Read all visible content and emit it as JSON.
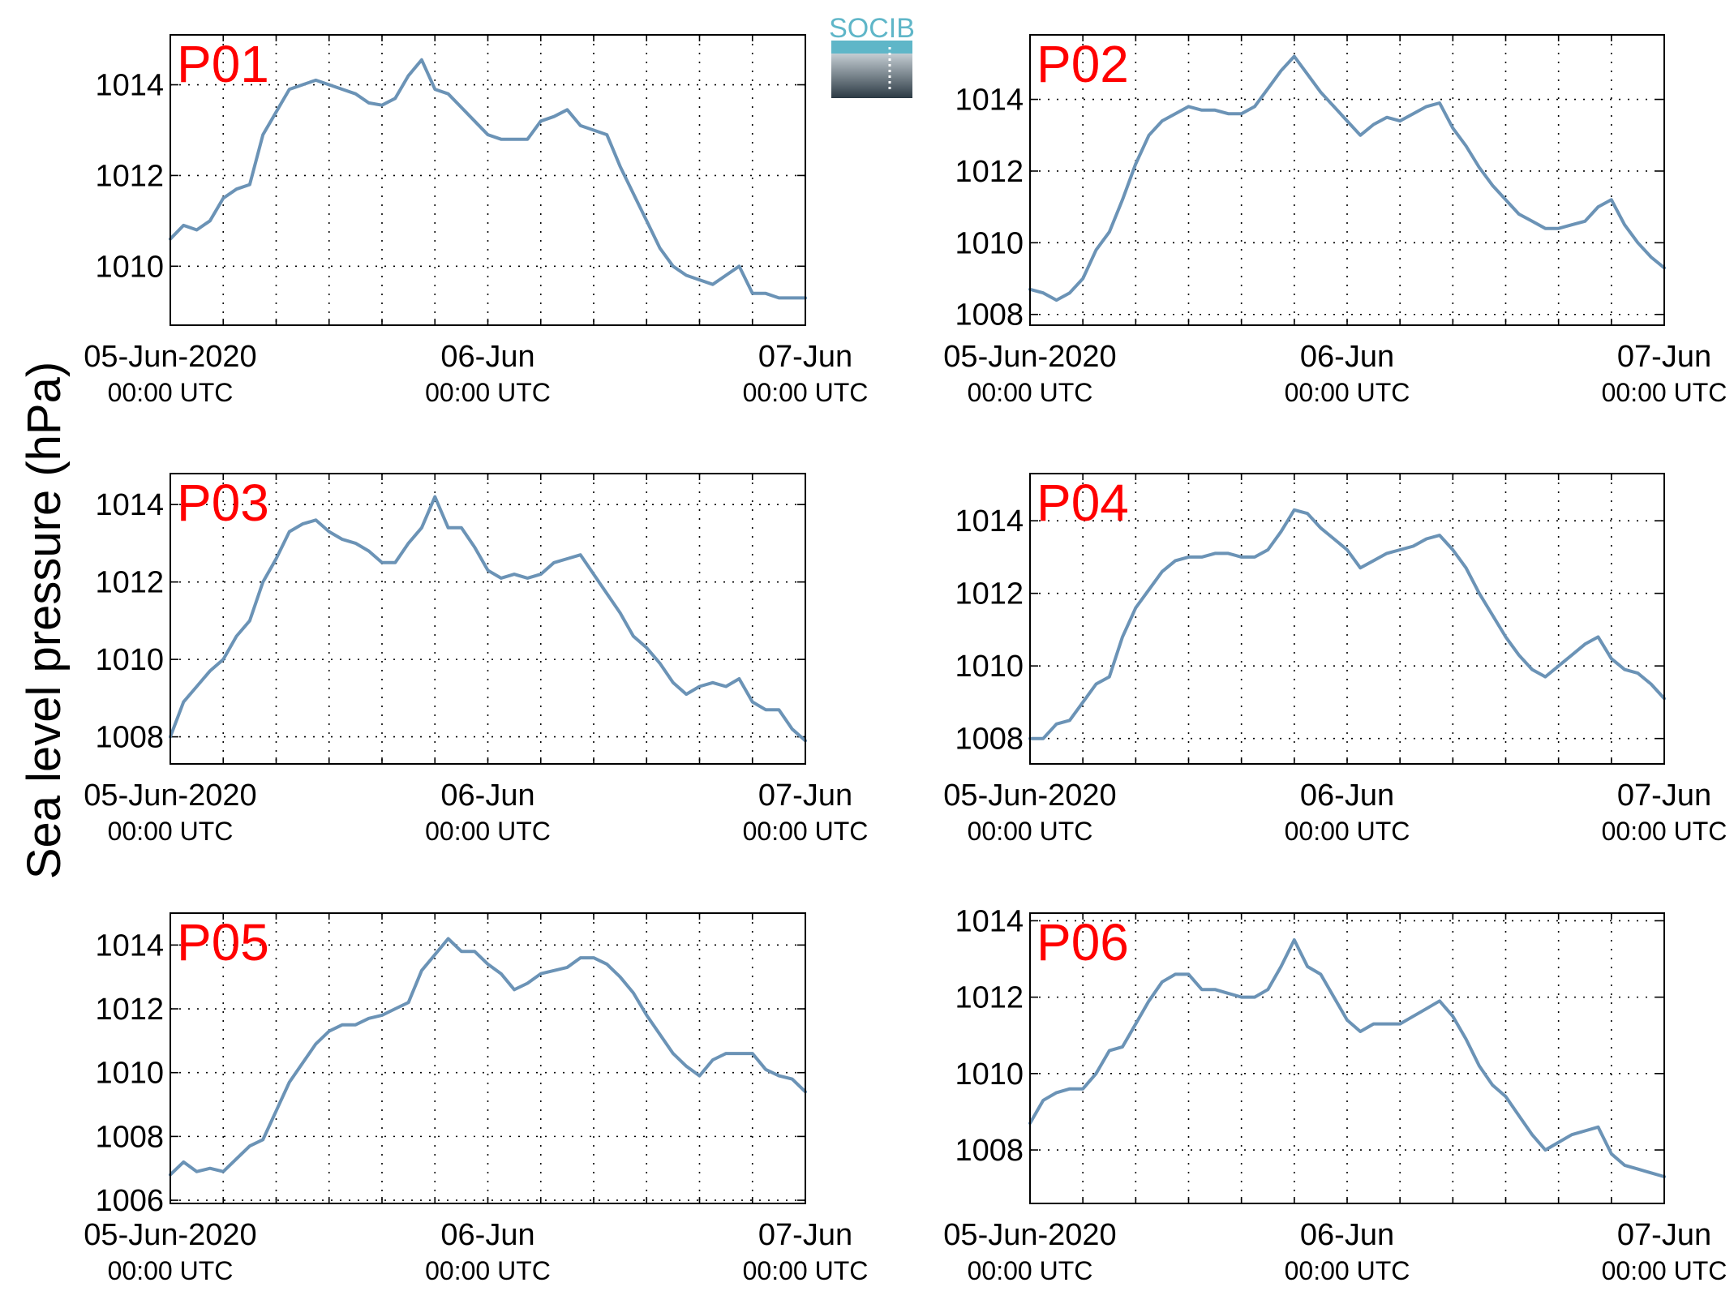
{
  "figure": {
    "ylabel": "Sea level pressure (hPa)",
    "logo_text": "SOCIB"
  },
  "colors": {
    "line": "#6b93b6",
    "panel_label": "#ff0000",
    "logo_accent": "#5fb6c8",
    "logo_dark": "#2c3a44"
  },
  "chart_data": [
    {
      "type": "line",
      "panel_label": "P01",
      "x_unit": "hours since 05-Jun-2020 00:00 UTC",
      "x_ticks": [
        {
          "x": 0,
          "label": "05-Jun-2020",
          "sub": "00:00 UTC"
        },
        {
          "x": 24,
          "label": "06-Jun",
          "sub": "00:00 UTC"
        },
        {
          "x": 48,
          "label": "07-Jun",
          "sub": "00:00 UTC"
        }
      ],
      "xlim": [
        0,
        48
      ],
      "ylim": [
        1008.7,
        1015.1
      ],
      "yticks": [
        1010,
        1012,
        1014
      ],
      "grid": true,
      "x": [
        0,
        1,
        2,
        3,
        4,
        5,
        6,
        7,
        8,
        9,
        10,
        11,
        12,
        13,
        14,
        15,
        16,
        17,
        18,
        19,
        20,
        21,
        22,
        23,
        24,
        25,
        26,
        27,
        28,
        29,
        30,
        31,
        32,
        33,
        34,
        35,
        36,
        37,
        38,
        39,
        40,
        41,
        42,
        43,
        44,
        45,
        46,
        47,
        48
      ],
      "y": [
        1010.6,
        1010.9,
        1010.8,
        1011.0,
        1011.5,
        1011.7,
        1011.8,
        1012.9,
        1013.4,
        1013.9,
        1014.0,
        1014.1,
        1014.0,
        1013.9,
        1013.8,
        1013.6,
        1013.55,
        1013.7,
        1014.2,
        1014.55,
        1013.9,
        1013.8,
        1013.5,
        1013.2,
        1012.9,
        1012.8,
        1012.8,
        1012.8,
        1013.2,
        1013.3,
        1013.45,
        1013.1,
        1013.0,
        1012.9,
        1012.2,
        1011.6,
        1011.0,
        1010.4,
        1010.0,
        1009.8,
        1009.7,
        1009.6,
        1009.8,
        1010.0,
        1009.4,
        1009.4,
        1009.3,
        1009.3,
        1009.3
      ]
    },
    {
      "type": "line",
      "panel_label": "P02",
      "x_unit": "hours since 05-Jun-2020 00:00 UTC",
      "x_ticks": [
        {
          "x": 0,
          "label": "05-Jun-2020",
          "sub": "00:00 UTC"
        },
        {
          "x": 24,
          "label": "06-Jun",
          "sub": "00:00 UTC"
        },
        {
          "x": 48,
          "label": "07-Jun",
          "sub": "00:00 UTC"
        }
      ],
      "xlim": [
        0,
        48
      ],
      "ylim": [
        1007.7,
        1015.8
      ],
      "yticks": [
        1008,
        1010,
        1012,
        1014
      ],
      "grid": true,
      "x": [
        0,
        1,
        2,
        3,
        4,
        5,
        6,
        7,
        8,
        9,
        10,
        11,
        12,
        13,
        14,
        15,
        16,
        17,
        18,
        19,
        20,
        21,
        22,
        23,
        24,
        25,
        26,
        27,
        28,
        29,
        30,
        31,
        32,
        33,
        34,
        35,
        36,
        37,
        38,
        39,
        40,
        41,
        42,
        43,
        44,
        45,
        46,
        47,
        48
      ],
      "y": [
        1008.7,
        1008.6,
        1008.4,
        1008.6,
        1009.0,
        1009.8,
        1010.3,
        1011.2,
        1012.2,
        1013.0,
        1013.4,
        1013.6,
        1013.8,
        1013.7,
        1013.7,
        1013.6,
        1013.6,
        1013.8,
        1014.3,
        1014.8,
        1015.2,
        1014.7,
        1014.2,
        1013.8,
        1013.4,
        1013.0,
        1013.3,
        1013.5,
        1013.4,
        1013.6,
        1013.8,
        1013.9,
        1013.2,
        1012.7,
        1012.1,
        1011.6,
        1011.2,
        1010.8,
        1010.6,
        1010.4,
        1010.4,
        1010.5,
        1010.6,
        1011.0,
        1011.2,
        1010.5,
        1010.0,
        1009.6,
        1009.3
      ]
    },
    {
      "type": "line",
      "panel_label": "P03",
      "x_unit": "hours since 05-Jun-2020 00:00 UTC",
      "x_ticks": [
        {
          "x": 0,
          "label": "05-Jun-2020",
          "sub": "00:00 UTC"
        },
        {
          "x": 24,
          "label": "06-Jun",
          "sub": "00:00 UTC"
        },
        {
          "x": 48,
          "label": "07-Jun",
          "sub": "00:00 UTC"
        }
      ],
      "xlim": [
        0,
        48
      ],
      "ylim": [
        1007.3,
        1014.8
      ],
      "yticks": [
        1008,
        1010,
        1012,
        1014
      ],
      "grid": true,
      "x": [
        0,
        1,
        2,
        3,
        4,
        5,
        6,
        7,
        8,
        9,
        10,
        11,
        12,
        13,
        14,
        15,
        16,
        17,
        18,
        19,
        20,
        21,
        22,
        23,
        24,
        25,
        26,
        27,
        28,
        29,
        30,
        31,
        32,
        33,
        34,
        35,
        36,
        37,
        38,
        39,
        40,
        41,
        42,
        43,
        44,
        45,
        46,
        47,
        48
      ],
      "y": [
        1008.0,
        1008.9,
        1009.3,
        1009.7,
        1010.0,
        1010.6,
        1011.0,
        1012.0,
        1012.6,
        1013.3,
        1013.5,
        1013.6,
        1013.3,
        1013.1,
        1013.0,
        1012.8,
        1012.5,
        1012.5,
        1013.0,
        1013.4,
        1014.2,
        1013.4,
        1013.4,
        1012.9,
        1012.3,
        1012.1,
        1012.2,
        1012.1,
        1012.2,
        1012.5,
        1012.6,
        1012.7,
        1012.2,
        1011.7,
        1011.2,
        1010.6,
        1010.3,
        1009.9,
        1009.4,
        1009.1,
        1009.3,
        1009.4,
        1009.3,
        1009.5,
        1008.9,
        1008.7,
        1008.7,
        1008.2,
        1007.9
      ]
    },
    {
      "type": "line",
      "panel_label": "P04",
      "x_unit": "hours since 05-Jun-2020 00:00 UTC",
      "x_ticks": [
        {
          "x": 0,
          "label": "05-Jun-2020",
          "sub": "00:00 UTC"
        },
        {
          "x": 24,
          "label": "06-Jun",
          "sub": "00:00 UTC"
        },
        {
          "x": 48,
          "label": "07-Jun",
          "sub": "00:00 UTC"
        }
      ],
      "xlim": [
        0,
        48
      ],
      "ylim": [
        1007.3,
        1015.3
      ],
      "yticks": [
        1008,
        1010,
        1012,
        1014
      ],
      "grid": true,
      "x": [
        0,
        1,
        2,
        3,
        4,
        5,
        6,
        7,
        8,
        9,
        10,
        11,
        12,
        13,
        14,
        15,
        16,
        17,
        18,
        19,
        20,
        21,
        22,
        23,
        24,
        25,
        26,
        27,
        28,
        29,
        30,
        31,
        32,
        33,
        34,
        35,
        36,
        37,
        38,
        39,
        40,
        41,
        42,
        43,
        44,
        45,
        46,
        47,
        48
      ],
      "y": [
        1008.0,
        1008.0,
        1008.4,
        1008.5,
        1009.0,
        1009.5,
        1009.7,
        1010.8,
        1011.6,
        1012.1,
        1012.6,
        1012.9,
        1013.0,
        1013.0,
        1013.1,
        1013.1,
        1013.0,
        1013.0,
        1013.2,
        1013.7,
        1014.3,
        1014.2,
        1013.8,
        1013.5,
        1013.2,
        1012.7,
        1012.9,
        1013.1,
        1013.2,
        1013.3,
        1013.5,
        1013.6,
        1013.2,
        1012.7,
        1012.0,
        1011.4,
        1010.8,
        1010.3,
        1009.9,
        1009.7,
        1010.0,
        1010.3,
        1010.6,
        1010.8,
        1010.2,
        1009.9,
        1009.8,
        1009.5,
        1009.1
      ]
    },
    {
      "type": "line",
      "panel_label": "P05",
      "x_unit": "hours since 05-Jun-2020 00:00 UTC",
      "x_ticks": [
        {
          "x": 0,
          "label": "05-Jun-2020",
          "sub": "00:00 UTC"
        },
        {
          "x": 24,
          "label": "06-Jun",
          "sub": "00:00 UTC"
        },
        {
          "x": 48,
          "label": "07-Jun",
          "sub": "00:00 UTC"
        }
      ],
      "xlim": [
        0,
        48
      ],
      "ylim": [
        1005.9,
        1015.0
      ],
      "yticks": [
        1006,
        1008,
        1010,
        1012,
        1014
      ],
      "grid": true,
      "x": [
        0,
        1,
        2,
        3,
        4,
        5,
        6,
        7,
        8,
        9,
        10,
        11,
        12,
        13,
        14,
        15,
        16,
        17,
        18,
        19,
        20,
        21,
        22,
        23,
        24,
        25,
        26,
        27,
        28,
        29,
        30,
        31,
        32,
        33,
        34,
        35,
        36,
        37,
        38,
        39,
        40,
        41,
        42,
        43,
        44,
        45,
        46,
        47,
        48
      ],
      "y": [
        1006.8,
        1007.2,
        1006.9,
        1007.0,
        1006.9,
        1007.3,
        1007.7,
        1007.9,
        1008.8,
        1009.7,
        1010.3,
        1010.9,
        1011.3,
        1011.5,
        1011.5,
        1011.7,
        1011.8,
        1012.0,
        1012.2,
        1013.2,
        1013.7,
        1014.2,
        1013.8,
        1013.8,
        1013.4,
        1013.1,
        1012.6,
        1012.8,
        1013.1,
        1013.2,
        1013.3,
        1013.6,
        1013.6,
        1013.4,
        1013.0,
        1012.5,
        1011.8,
        1011.2,
        1010.6,
        1010.2,
        1009.9,
        1010.4,
        1010.6,
        1010.6,
        1010.6,
        1010.1,
        1009.9,
        1009.8,
        1009.4
      ]
    },
    {
      "type": "line",
      "panel_label": "P06",
      "x_unit": "hours since 05-Jun-2020 00:00 UTC",
      "x_ticks": [
        {
          "x": 0,
          "label": "05-Jun-2020",
          "sub": "00:00 UTC"
        },
        {
          "x": 24,
          "label": "06-Jun",
          "sub": "00:00 UTC"
        },
        {
          "x": 48,
          "label": "07-Jun",
          "sub": "00:00 UTC"
        }
      ],
      "xlim": [
        0,
        48
      ],
      "ylim": [
        1006.6,
        1014.2
      ],
      "yticks": [
        1008,
        1010,
        1012,
        1014
      ],
      "grid": true,
      "x": [
        0,
        1,
        2,
        3,
        4,
        5,
        6,
        7,
        8,
        9,
        10,
        11,
        12,
        13,
        14,
        15,
        16,
        17,
        18,
        19,
        20,
        21,
        22,
        23,
        24,
        25,
        26,
        27,
        28,
        29,
        30,
        31,
        32,
        33,
        34,
        35,
        36,
        37,
        38,
        39,
        40,
        41,
        42,
        43,
        44,
        45,
        46,
        47,
        48
      ],
      "y": [
        1008.7,
        1009.3,
        1009.5,
        1009.6,
        1009.6,
        1010.0,
        1010.6,
        1010.7,
        1011.3,
        1011.9,
        1012.4,
        1012.6,
        1012.6,
        1012.2,
        1012.2,
        1012.1,
        1012.0,
        1012.0,
        1012.2,
        1012.8,
        1013.5,
        1012.8,
        1012.6,
        1012.0,
        1011.4,
        1011.1,
        1011.3,
        1011.3,
        1011.3,
        1011.5,
        1011.7,
        1011.9,
        1011.5,
        1010.9,
        1010.2,
        1009.7,
        1009.4,
        1008.9,
        1008.4,
        1008.0,
        1008.2,
        1008.4,
        1008.5,
        1008.6,
        1007.9,
        1007.6,
        1007.5,
        1007.4,
        1007.3
      ]
    }
  ]
}
